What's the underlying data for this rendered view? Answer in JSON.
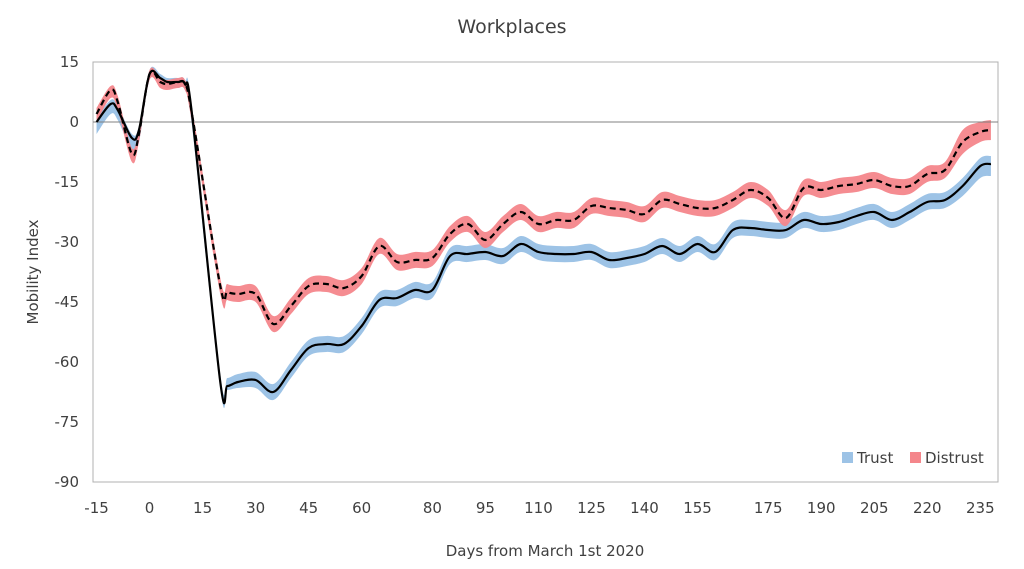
{
  "chart_data": {
    "type": "line",
    "title": "Workplaces",
    "xlabel": "Days from March 1st 2020",
    "ylabel": "Mobility Index",
    "xlim": [
      -16,
      240
    ],
    "ylim": [
      -90,
      15
    ],
    "xticks": [
      -15,
      0,
      15,
      30,
      45,
      60,
      80,
      95,
      110,
      125,
      140,
      155,
      175,
      190,
      205,
      220,
      235
    ],
    "xtick_labels": [
      "-15",
      "0",
      "15",
      "30",
      "45",
      "60",
      "80",
      "95",
      "110",
      "125",
      "140",
      "155",
      "175",
      "190",
      "205",
      "220",
      "235"
    ],
    "yticks": [
      15,
      0,
      -15,
      -30,
      -45,
      -60,
      -75,
      -90
    ],
    "ytick_labels": [
      "15",
      "0",
      "-15",
      "-30",
      "-45",
      "-60",
      "-75",
      "-90"
    ],
    "grid": false,
    "zero_line": true,
    "legend": {
      "placement": "bottom-right",
      "entries": [
        {
          "label": "Trust",
          "color": "#9dc3e6"
        },
        {
          "label": "Distrust",
          "color": "#f4868b"
        }
      ]
    },
    "series": [
      {
        "name": "Trust",
        "line_style": "solid",
        "line_color": "#000000",
        "band_color": "#9dc3e6",
        "x": [
          -15,
          -11,
          -9,
          -5,
          -3,
          0,
          3,
          5,
          8,
          10,
          12,
          20,
          22,
          25,
          30,
          35,
          40,
          45,
          50,
          55,
          60,
          65,
          70,
          75,
          80,
          85,
          90,
          95,
          100,
          105,
          110,
          115,
          120,
          125,
          130,
          135,
          140,
          145,
          150,
          155,
          160,
          165,
          170,
          175,
          180,
          185,
          190,
          195,
          200,
          205,
          210,
          215,
          220,
          225,
          230,
          235,
          238
        ],
        "values": [
          0,
          4.5,
          3,
          -4,
          -2,
          12,
          11,
          10,
          10,
          9.5,
          2,
          -65,
          -66,
          -65,
          -64.5,
          -67.5,
          -62,
          -56.5,
          -55.5,
          -55.5,
          -51,
          -44.5,
          -44,
          -42,
          -42,
          -33.5,
          -33,
          -32.5,
          -33.5,
          -30.5,
          -32.5,
          -33,
          -33,
          -32.5,
          -34.5,
          -34,
          -33,
          -31,
          -33,
          -30.5,
          -32.5,
          -27,
          -26.5,
          -27,
          -27,
          -24.5,
          -25.5,
          -25,
          -23.5,
          -22.5,
          -24.5,
          -22.5,
          -20,
          -19.5,
          -16,
          -11,
          -10.5
        ],
        "lower": [
          -3,
          2,
          0.5,
          -7,
          -5,
          10.5,
          9.5,
          8.5,
          8.5,
          8,
          -1,
          -66.5,
          -67,
          -66.5,
          -66.5,
          -69.5,
          -64,
          -58.5,
          -57.5,
          -57.5,
          -53,
          -46.5,
          -46,
          -44,
          -44,
          -35.5,
          -35,
          -34.5,
          -35.5,
          -32.5,
          -34.5,
          -35,
          -35,
          -34.5,
          -36.5,
          -36,
          -35,
          -33,
          -35,
          -32.5,
          -34.5,
          -29,
          -28.5,
          -29,
          -29,
          -26.5,
          -27.5,
          -27,
          -25.5,
          -24.5,
          -26.5,
          -24.5,
          -22,
          -21.5,
          -18.5,
          -14,
          -13.5
        ],
        "upper": [
          1,
          5.5,
          4,
          -3,
          -1,
          13,
          12,
          11,
          11,
          10.5,
          3.5,
          -63,
          -64,
          -63,
          -62.5,
          -65.5,
          -60,
          -54.5,
          -53.5,
          -53.5,
          -49,
          -42.5,
          -42,
          -40,
          -40,
          -31.5,
          -31,
          -30.5,
          -31.5,
          -28.5,
          -30.5,
          -31,
          -31,
          -30.5,
          -32.5,
          -32,
          -31,
          -29,
          -31,
          -28.5,
          -30.5,
          -25,
          -24.5,
          -25,
          -25,
          -22.5,
          -23.5,
          -23,
          -21.5,
          -20.5,
          -22.5,
          -20.5,
          -18,
          -17.5,
          -14,
          -9,
          -8.5
        ]
      },
      {
        "name": "Distrust",
        "line_style": "dashed",
        "line_color": "#000000",
        "band_color": "#f4868b",
        "x": [
          -15,
          -11,
          -9,
          -5,
          -3,
          0,
          3,
          5,
          8,
          10,
          12,
          20,
          22,
          25,
          30,
          35,
          40,
          45,
          50,
          55,
          60,
          65,
          70,
          75,
          80,
          85,
          90,
          95,
          100,
          105,
          110,
          115,
          120,
          125,
          130,
          135,
          140,
          145,
          150,
          155,
          160,
          165,
          170,
          175,
          180,
          185,
          190,
          195,
          200,
          205,
          210,
          215,
          220,
          225,
          230,
          235,
          238
        ],
        "values": [
          2,
          8,
          5,
          -8,
          -3,
          12,
          10,
          9.5,
          10,
          9.5,
          2,
          -41,
          -42.5,
          -43,
          -43,
          -50.5,
          -46,
          -41,
          -40.5,
          -41.5,
          -38.5,
          -31,
          -35,
          -34.5,
          -34,
          -28,
          -25.5,
          -29.5,
          -25.5,
          -22.5,
          -25.5,
          -24.5,
          -24.5,
          -21,
          -21.5,
          -22,
          -23,
          -19.5,
          -20.5,
          -21.5,
          -21.5,
          -19.5,
          -17,
          -19,
          -24,
          -16.5,
          -17,
          -16,
          -15.5,
          -14.5,
          -16,
          -16,
          -13,
          -12,
          -5,
          -2.5,
          -2
        ],
        "lower": [
          0,
          6,
          3,
          -10,
          -5,
          10.5,
          8.5,
          8,
          8.5,
          8,
          0,
          -43,
          -44.5,
          -45,
          -45,
          -52.5,
          -48,
          -43,
          -42.5,
          -43.5,
          -40.5,
          -33,
          -37,
          -36.5,
          -36,
          -30,
          -27.5,
          -31.5,
          -27.5,
          -24.5,
          -27.5,
          -26.5,
          -26.5,
          -23,
          -23.5,
          -24,
          -25,
          -21.5,
          -22.5,
          -23.5,
          -23.5,
          -21.5,
          -19,
          -21,
          -26,
          -18.5,
          -19,
          -18,
          -17.5,
          -16.5,
          -18,
          -18,
          -15,
          -14,
          -8,
          -5,
          -4.5
        ],
        "upper": [
          3.5,
          9,
          6.5,
          -6.5,
          -1.5,
          13,
          11,
          10.5,
          11,
          10.5,
          3.5,
          -39,
          -40.5,
          -41,
          -41,
          -48.5,
          -44,
          -39,
          -38.5,
          -39.5,
          -36.5,
          -29,
          -33,
          -32.5,
          -32,
          -26,
          -23.5,
          -27.5,
          -23.5,
          -20.5,
          -23.5,
          -22.5,
          -22.5,
          -19,
          -19.5,
          -20,
          -21,
          -17.5,
          -18.5,
          -19.5,
          -19.5,
          -17.5,
          -15,
          -17,
          -22,
          -14.5,
          -15,
          -14,
          -13.5,
          -12.5,
          -14,
          -14,
          -11,
          -10,
          -2,
          0,
          0.5
        ]
      }
    ]
  }
}
